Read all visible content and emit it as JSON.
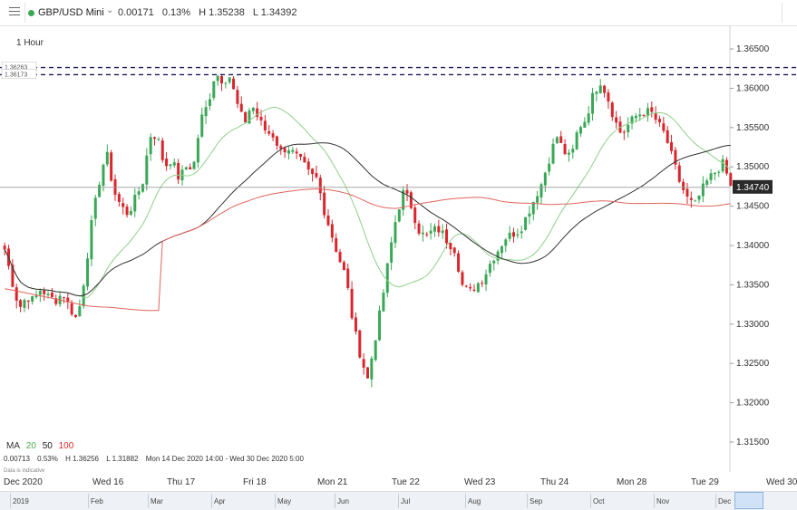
{
  "header": {
    "instrument": "GBP/USD Mini",
    "change": "0.00171",
    "change_pct": "0.13%",
    "high": "H 1.35238",
    "low": "L 1.34392",
    "status_color": "#3aa757"
  },
  "timeframe": "1 Hour",
  "ma_legend": {
    "label": "MA",
    "ma1": "20",
    "ma2": "50",
    "ma3": "100"
  },
  "info_line": {
    "change": "0.00713",
    "change_pct": "0.53%",
    "high": "H 1.36256",
    "low": "L 1.31882",
    "range": "Mon 14 Dec 2020 14:00 - Wed 30 Dec 2020 5:00"
  },
  "indicative_note": "Data is indicative",
  "navigator": {
    "labels": [
      "2019",
      "Feb",
      "Mar",
      "Apr",
      "May",
      "Jun",
      "Jul",
      "Aug",
      "Sep",
      "Oct",
      "Nov",
      "Dec"
    ]
  },
  "colors": {
    "up": "#3aa757",
    "down": "#d9262d",
    "ma20": "#8fcf8a",
    "ma50": "#333333",
    "ma100": "#e0655b",
    "resistance": "#1a1a5e"
  },
  "chart_data": {
    "type": "candlestick",
    "x_start_label": "Dec 2020",
    "x_tick_labels": [
      "Wed 16",
      "Thu 17",
      "Fri 18",
      "Mon 21",
      "Tue 22",
      "Wed 23",
      "Thu 24",
      "Mon 28",
      "Tue 29",
      "Wed 30"
    ],
    "y_ticks": [
      "1.36500",
      "1.36000",
      "1.35500",
      "1.35000",
      "1.34500",
      "1.34000",
      "1.33500",
      "1.33000",
      "1.32500",
      "1.32000",
      "1.31500"
    ],
    "ylim": [
      1.3112,
      1.368
    ],
    "current_price": "1.34740",
    "resistance_levels": [
      "1.36263",
      "1.36173"
    ],
    "moving_averages": [
      "MA 20",
      "MA 50",
      "MA 100"
    ],
    "price_path": [
      [
        1.3395,
        1.3355,
        1.332,
        1.3335,
        1.333,
        1.3345,
        1.3335,
        1.333,
        1.334,
        1.332,
        1.3305,
        1.336,
        1.343,
        1.348,
        1.352,
        1.347,
        1.345,
        1.344,
        1.346,
        1.348,
        1.354,
        1.354,
        1.35,
        1.351,
        1.3485,
        1.35,
        1.35,
        1.356,
        1.358,
        1.362,
        1.361,
        1.3615,
        1.358,
        1.3555,
        1.358,
        1.356,
        1.3545,
        1.354,
        1.352,
        1.3525,
        1.3515,
        1.3505,
        1.349,
        1.3485,
        1.3445,
        1.3415,
        1.3385,
        1.336,
        1.33,
        1.326,
        1.323,
        1.328,
        1.333,
        1.339,
        1.344,
        1.347,
        1.345,
        1.342,
        1.341,
        1.342,
        1.342,
        1.3405,
        1.3395,
        1.335,
        1.334,
        1.335,
        1.336,
        1.338,
        1.3395,
        1.341,
        1.3415,
        1.342,
        1.344,
        1.346,
        1.348,
        1.351,
        1.354,
        1.352,
        1.351,
        1.355,
        1.356,
        1.359,
        1.361,
        1.359,
        1.356,
        1.354,
        1.3555,
        1.3565,
        1.357,
        1.357,
        1.3555,
        1.354,
        1.351,
        1.348,
        1.346,
        1.345,
        1.347,
        1.3485,
        1.3495,
        1.3505,
        1.3474
      ]
    ]
  }
}
